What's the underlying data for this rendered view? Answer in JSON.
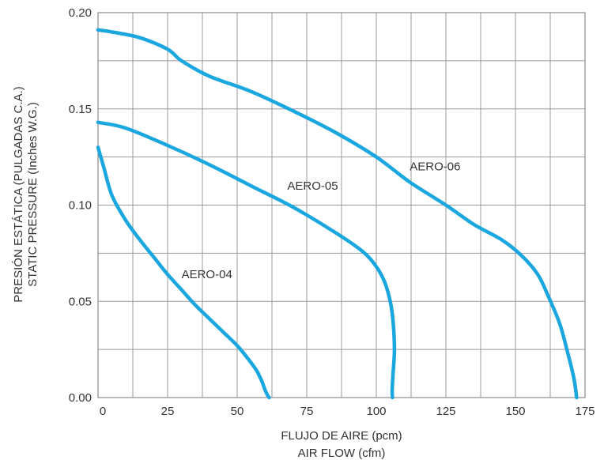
{
  "chart_data": {
    "type": "line",
    "title": "",
    "xlabel_lines": [
      "FLUJO DE AIRE (pcm)",
      "AIR FLOW (cfm)"
    ],
    "ylabel_lines": [
      "PRESIÓN ESTÁTICA (PULGADAS C.A.)",
      "STATIC PRESSURE (Inches W.G.)"
    ],
    "xlim": [
      0,
      175
    ],
    "ylim": [
      0,
      0.2
    ],
    "x_ticks": [
      0,
      25,
      50,
      75,
      100,
      125,
      150,
      175
    ],
    "x_tick_labels": [
      "0",
      "25",
      "50",
      "75",
      "100",
      "125",
      "150",
      "175"
    ],
    "y_ticks": [
      0,
      0.05,
      0.1,
      0.15,
      0.2
    ],
    "y_tick_labels": [
      "0.00",
      "0.05",
      "0.10",
      "0.15",
      "0.20"
    ],
    "x_grid_step": 12.5,
    "y_grid_step": 0.025,
    "grid": true,
    "line_color": "#1aa7e0",
    "series": [
      {
        "name": "AERO-04",
        "x": [
          0,
          2,
          5,
          10,
          15,
          20,
          25,
          30,
          35,
          40,
          45,
          50,
          54,
          57,
          59,
          60,
          61,
          61.5
        ],
        "y": [
          0.13,
          0.12,
          0.105,
          0.092,
          0.082,
          0.073,
          0.064,
          0.056,
          0.048,
          0.041,
          0.034,
          0.027,
          0.02,
          0.014,
          0.008,
          0.004,
          0.001,
          0
        ]
      },
      {
        "name": "AERO-05",
        "x": [
          0,
          10,
          25,
          40,
          55,
          70,
          85,
          95,
          100,
          103,
          105,
          106,
          106.5,
          106,
          105.7,
          105.8
        ],
        "y": [
          0.143,
          0.14,
          0.131,
          0.121,
          0.11,
          0.099,
          0.086,
          0.076,
          0.068,
          0.06,
          0.05,
          0.04,
          0.025,
          0.012,
          0.004,
          0
        ]
      },
      {
        "name": "AERO-06",
        "x": [
          0,
          5,
          15,
          25,
          30,
          40,
          55,
          70,
          85,
          100,
          112,
          125,
          135,
          145,
          152,
          158,
          162,
          166,
          169,
          171,
          172
        ],
        "y": [
          0.191,
          0.19,
          0.187,
          0.181,
          0.175,
          0.167,
          0.159,
          0.149,
          0.138,
          0.125,
          0.112,
          0.1,
          0.09,
          0.082,
          0.074,
          0.064,
          0.052,
          0.038,
          0.022,
          0.01,
          0
        ]
      }
    ],
    "annotations": [
      {
        "text": "AERO-04",
        "x": 30,
        "y": 0.062
      },
      {
        "text": "AERO-05",
        "x": 68,
        "y": 0.108
      },
      {
        "text": "AERO-06",
        "x": 112,
        "y": 0.118
      }
    ]
  }
}
